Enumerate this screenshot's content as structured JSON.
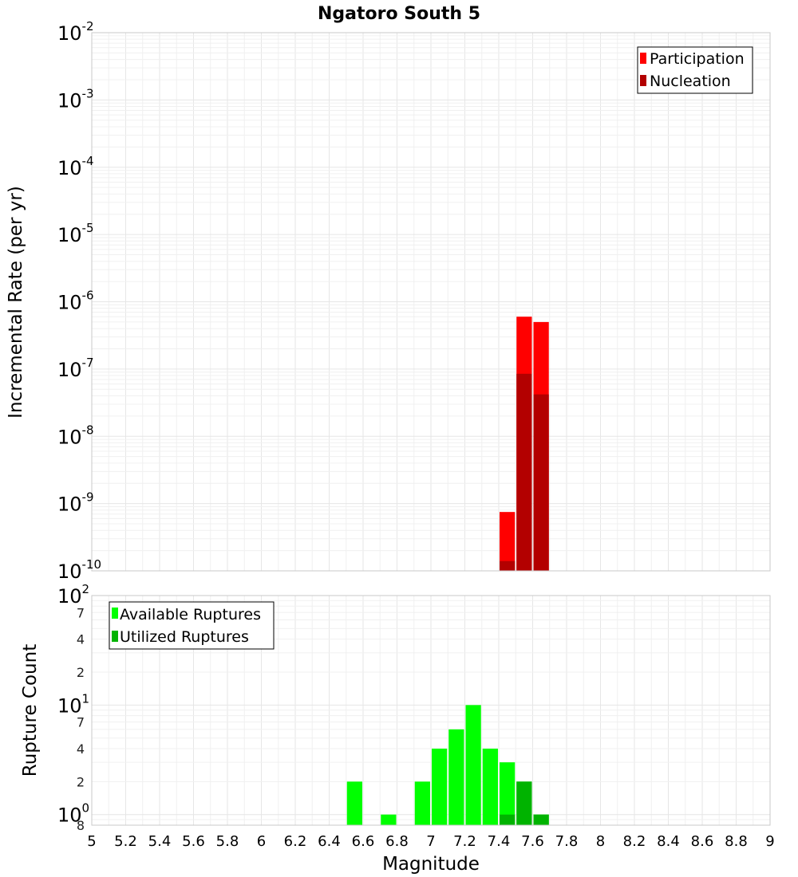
{
  "chart_data": [
    {
      "type": "bar",
      "title": "Ngatoro South 5",
      "xlabel": "",
      "ylabel": "Incremental Rate (per yr)",
      "yscale": "log",
      "ylim": [
        1e-10,
        0.01
      ],
      "xlim": [
        5,
        9
      ],
      "bar_width": 0.1,
      "grid": true,
      "legend_position": "top-right",
      "y_tick_labels": [
        {
          "base": "10",
          "exp": "-2",
          "value": 0.01
        },
        {
          "base": "10",
          "exp": "-3",
          "value": 0.001
        },
        {
          "base": "10",
          "exp": "-4",
          "value": 0.0001
        },
        {
          "base": "10",
          "exp": "-5",
          "value": 1e-05
        },
        {
          "base": "10",
          "exp": "-6",
          "value": 1e-06
        },
        {
          "base": "10",
          "exp": "-7",
          "value": 1e-07
        },
        {
          "base": "10",
          "exp": "-8",
          "value": 1e-08
        },
        {
          "base": "10",
          "exp": "-9",
          "value": 1e-09
        },
        {
          "base": "10",
          "exp": "-10",
          "value": 1e-10
        }
      ],
      "series": [
        {
          "name": "Participation",
          "color": "#ff0000",
          "x": [
            7.45,
            7.55,
            7.65
          ],
          "values": [
            7.5e-10,
            6e-07,
            5e-07
          ]
        },
        {
          "name": "Nucleation",
          "color": "#b30000",
          "x": [
            7.45,
            7.55,
            7.65
          ],
          "values": [
            1.4e-10,
            8.5e-08,
            4.2e-08
          ]
        }
      ]
    },
    {
      "type": "bar",
      "title": "",
      "xlabel": "Magnitude",
      "ylabel": "Rupture Count",
      "yscale": "log",
      "ylim": [
        0.8,
        100
      ],
      "xlim": [
        5,
        9
      ],
      "bar_width": 0.1,
      "grid": true,
      "legend_position": "top-left",
      "x_tick_labels": [
        "5",
        "5.2",
        "5.4",
        "5.6",
        "5.8",
        "6",
        "6.2",
        "6.4",
        "6.6",
        "6.8",
        "7",
        "7.2",
        "7.4",
        "7.6",
        "7.8",
        "8",
        "8.2",
        "8.4",
        "8.6",
        "8.8",
        "9"
      ],
      "y_tick_labels": [
        {
          "base": "10",
          "exp": "2",
          "value": 100
        },
        {
          "base": "10",
          "exp": "1",
          "value": 10
        },
        {
          "base": "10",
          "exp": "0",
          "value": 1
        }
      ],
      "y_minor_tick_labels": [
        {
          "label": "7",
          "value": 70
        },
        {
          "label": "4",
          "value": 40
        },
        {
          "label": "2",
          "value": 20
        },
        {
          "label": "7",
          "value": 7
        },
        {
          "label": "4",
          "value": 4
        },
        {
          "label": "2",
          "value": 2
        },
        {
          "label": "8",
          "value": 0.8
        }
      ],
      "series": [
        {
          "name": "Available Ruptures",
          "color": "#00ff00",
          "x": [
            6.55,
            6.75,
            6.95,
            7.05,
            7.15,
            7.25,
            7.35,
            7.45,
            7.55,
            7.65
          ],
          "values": [
            2,
            1,
            2,
            4,
            6,
            10,
            4,
            3,
            2,
            1
          ]
        },
        {
          "name": "Utilized Ruptures",
          "color": "#00b300",
          "x": [
            7.45,
            7.55,
            7.65
          ],
          "values": [
            1,
            2,
            1
          ]
        }
      ]
    }
  ]
}
